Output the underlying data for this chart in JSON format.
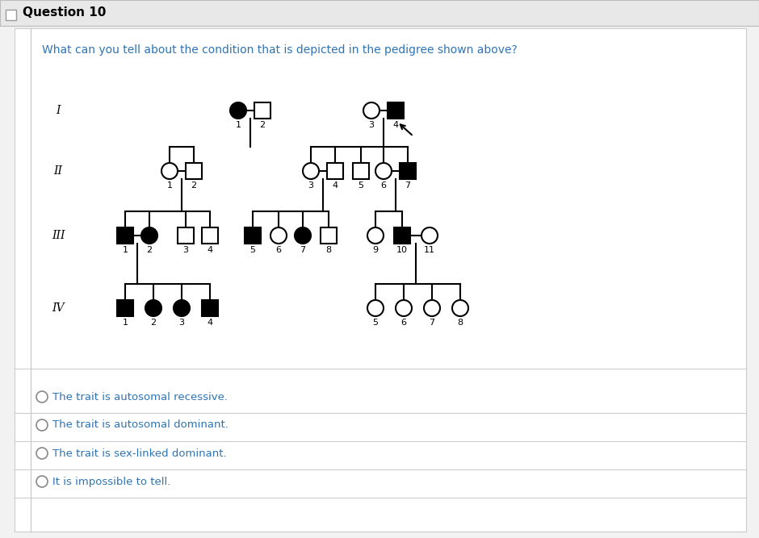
{
  "title": "Question 10",
  "question": "What can you tell about the condition that is depicted in the pedigree shown above?",
  "bg_color": "#f2f2f2",
  "content_bg": "#ffffff",
  "options": [
    "The trait is autosomal recessive.",
    "The trait is autosomal dominant.",
    "The trait is sex-linked dominant.",
    "It is impossible to tell."
  ],
  "option_color": "#2e74b5",
  "header_color": "#e8e8e8",
  "title_color": "#000000",
  "question_color": "#2e74b5",
  "line_color": "#000000",
  "filled_color": "#000000",
  "empty_color": "#ffffff",
  "roman_numerals": [
    "I",
    "II",
    "III",
    "IV"
  ]
}
